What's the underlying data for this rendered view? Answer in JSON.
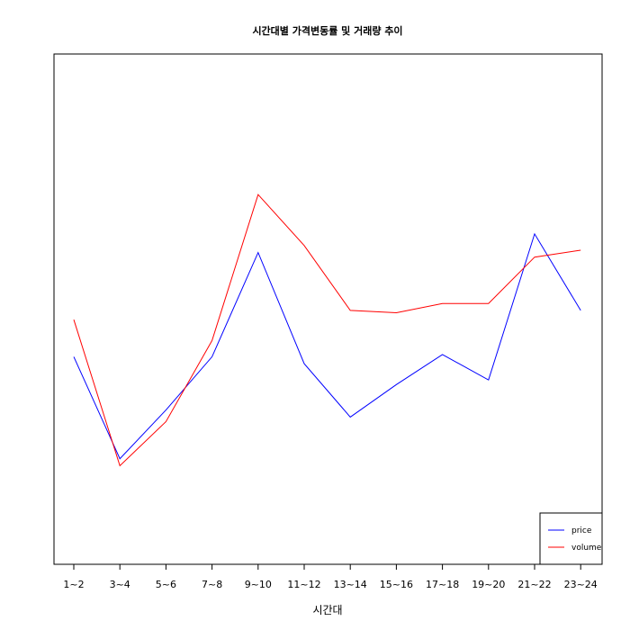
{
  "chart_data": {
    "type": "line",
    "title": "시간대별 가격변동률 및 거래량 추이",
    "xlabel": "시간대",
    "ylabel": "",
    "categories": [
      "1~2",
      "3~4",
      "5~6",
      "7~8",
      "9~10",
      "11~12",
      "13~14",
      "15~16",
      "17~18",
      "19~20",
      "21~22",
      "23~24"
    ],
    "ylim": [
      0,
      100
    ],
    "grid": false,
    "legend_position": "bottom-right",
    "series": [
      {
        "name": "price",
        "color": "#0000ff",
        "values": [
          40.5,
          18.5,
          29,
          40.5,
          63,
          39,
          27.5,
          34.5,
          41,
          35.5,
          67,
          50.5
        ]
      },
      {
        "name": "volume",
        "color": "#ff0000",
        "values": [
          48.5,
          17,
          26.5,
          44,
          75.5,
          64.5,
          50.5,
          50,
          52,
          52,
          62,
          63.5
        ]
      }
    ]
  }
}
